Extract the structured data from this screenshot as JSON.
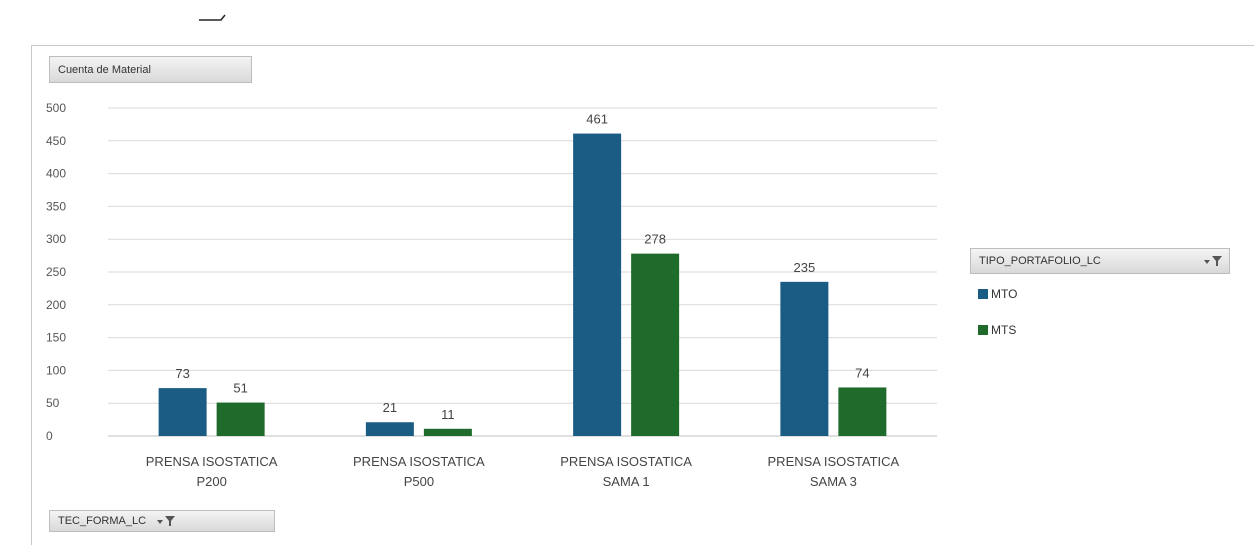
{
  "chart_data": {
    "type": "bar",
    "categories": [
      [
        "PRENSA ISOSTATICA",
        "P200"
      ],
      [
        "PRENSA ISOSTATICA",
        "P500"
      ],
      [
        "PRENSA ISOSTATICA",
        "SAMA 1"
      ],
      [
        "PRENSA ISOSTATICA",
        "SAMA 3"
      ]
    ],
    "series": [
      {
        "name": "MTO",
        "color": "#1b5c85",
        "values": [
          73,
          21,
          461,
          235
        ]
      },
      {
        "name": "MTS",
        "color": "#1e6b2b",
        "values": [
          51,
          11,
          278,
          74
        ]
      }
    ],
    "ylim": [
      0,
      500
    ],
    "yticks": [
      0,
      50,
      100,
      150,
      200,
      250,
      300,
      350,
      400,
      450,
      500
    ],
    "grid": true,
    "legend_position": "right",
    "value_field": "Cuenta de Material",
    "legend_field": "TIPO_PORTAFOLIO_LC",
    "axis_field": "TEC_FORMA_LC"
  }
}
